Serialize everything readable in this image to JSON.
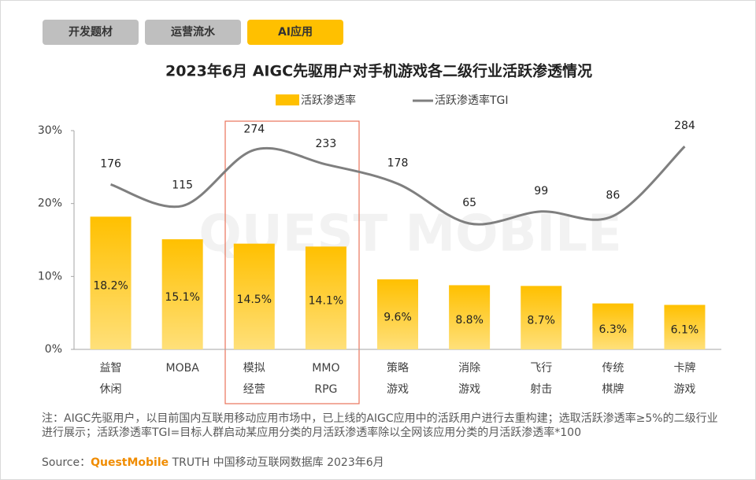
{
  "tabs": [
    "开发题材",
    "运营流水",
    "AI应用"
  ],
  "watermark": "QUEST MOBILE",
  "chart_data": {
    "type": "bar",
    "title": "2023年6月 AIGC先驱用户对手机游戏各二级行业活跃渗透情况",
    "categories": [
      "益智\n休闲",
      "MOBA",
      "模拟\n经营",
      "MMO\nRPG",
      "策略\n游戏",
      "消除\n游戏",
      "飞行\n射击",
      "传统\n棋牌",
      "卡牌\n游戏"
    ],
    "series": [
      {
        "name": "活跃渗透率",
        "type": "bar",
        "color": "#ffc000",
        "values": [
          18.2,
          15.1,
          14.5,
          14.1,
          9.6,
          8.8,
          8.7,
          6.3,
          6.1
        ],
        "value_labels": [
          "18.2%",
          "15.1%",
          "14.5%",
          "14.1%",
          "9.6%",
          "8.8%",
          "8.7%",
          "6.3%",
          "6.1%"
        ]
      },
      {
        "name": "活跃渗透率TGI",
        "type": "line",
        "axis": "y2",
        "color": "#7f7f7f",
        "values": [
          176,
          115,
          274,
          233,
          178,
          65,
          99,
          86,
          284
        ]
      }
    ],
    "ylim": [
      0,
      30
    ],
    "yticks": [
      {
        "value": 0,
        "label": "0%"
      },
      {
        "value": 10,
        "label": "10%"
      },
      {
        "value": 20,
        "label": "20%"
      },
      {
        "value": 30,
        "label": "30%"
      }
    ],
    "y2lim": [
      -293,
      329
    ],
    "grid": false,
    "legend": "top"
  },
  "note": "注：AIGC先驱用户，以目前国内互联用移动应用市场中，已上线的AIGC应用中的活跃用户进行去重构建；选取活跃渗透率≥5%的二级行业进行展示；活跃渗透率TGI=目标人群启动某应用分类的月活跃渗透率除以全网该应用分类的月活跃渗透率*100",
  "source": {
    "label": "Source：",
    "brand": "QuestMobile",
    "text": "TRUTH 中国移动互联网数据库 2023年6月"
  }
}
